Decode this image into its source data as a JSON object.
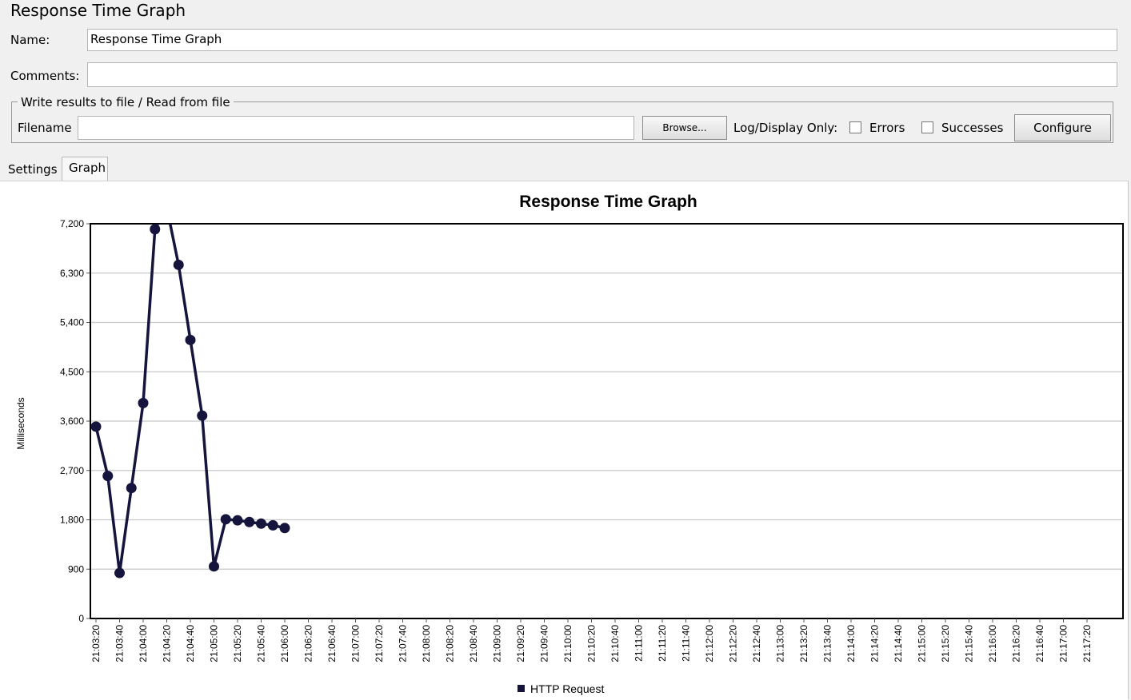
{
  "panel": {
    "title": "Response Time Graph"
  },
  "form": {
    "name_label": "Name:",
    "name_value": "Response Time Graph",
    "comments_label": "Comments:",
    "comments_value": "",
    "file_group_legend": "Write results to file / Read from file",
    "filename_label": "Filename",
    "filename_value": "",
    "browse_label": "Browse...",
    "log_display_label": "Log/Display Only:",
    "errors_label": "Errors",
    "errors_checked": false,
    "successes_label": "Successes",
    "successes_checked": false,
    "configure_label": "Configure"
  },
  "tabs": [
    {
      "label": "Settings",
      "active": false
    },
    {
      "label": "Graph",
      "active": true
    }
  ],
  "chart_data": {
    "type": "line",
    "title": "Response Time Graph",
    "ylabel": "Milliseconds",
    "xlabel": "",
    "ylim": [
      0,
      7200
    ],
    "y_ticks": [
      "0",
      "900",
      "1,800",
      "2,700",
      "3,600",
      "4,500",
      "5,400",
      "6,300",
      "7,200"
    ],
    "x_ticks": [
      "21:03:20",
      "21:03:40",
      "21:04:00",
      "21:04:20",
      "21:04:40",
      "21:05:00",
      "21:05:20",
      "21:05:40",
      "21:06:00",
      "21:06:20",
      "21:06:40",
      "21:07:00",
      "21:07:20",
      "21:07:40",
      "21:08:00",
      "21:08:20",
      "21:08:40",
      "21:09:00",
      "21:09:20",
      "21:09:40",
      "21:10:00",
      "21:10:20",
      "21:10:40",
      "21:11:00",
      "21:11:20",
      "21:11:40",
      "21:12:00",
      "21:12:20",
      "21:12:40",
      "21:13:00",
      "21:13:20",
      "21:13:40",
      "21:14:00",
      "21:14:20",
      "21:14:40",
      "21:15:00",
      "21:15:20",
      "21:15:40",
      "21:16:00",
      "21:16:20",
      "21:16:40",
      "21:17:00",
      "21:17:20"
    ],
    "grid": true,
    "legend_position": "bottom",
    "series": [
      {
        "name": "HTTP Request",
        "color": "#14143c",
        "x": [
          "21:03:20",
          "21:03:30",
          "21:03:40",
          "21:03:50",
          "21:04:00",
          "21:04:10",
          "21:04:20",
          "21:04:30",
          "21:04:40",
          "21:04:50",
          "21:05:00",
          "21:05:10",
          "21:05:20",
          "21:05:30",
          "21:05:40",
          "21:05:50",
          "21:06:00"
        ],
        "values": [
          3500,
          2600,
          830,
          2380,
          3930,
          7100,
          7500,
          6450,
          5080,
          3700,
          950,
          1810,
          1790,
          1760,
          1730,
          1700,
          1650
        ]
      }
    ]
  }
}
